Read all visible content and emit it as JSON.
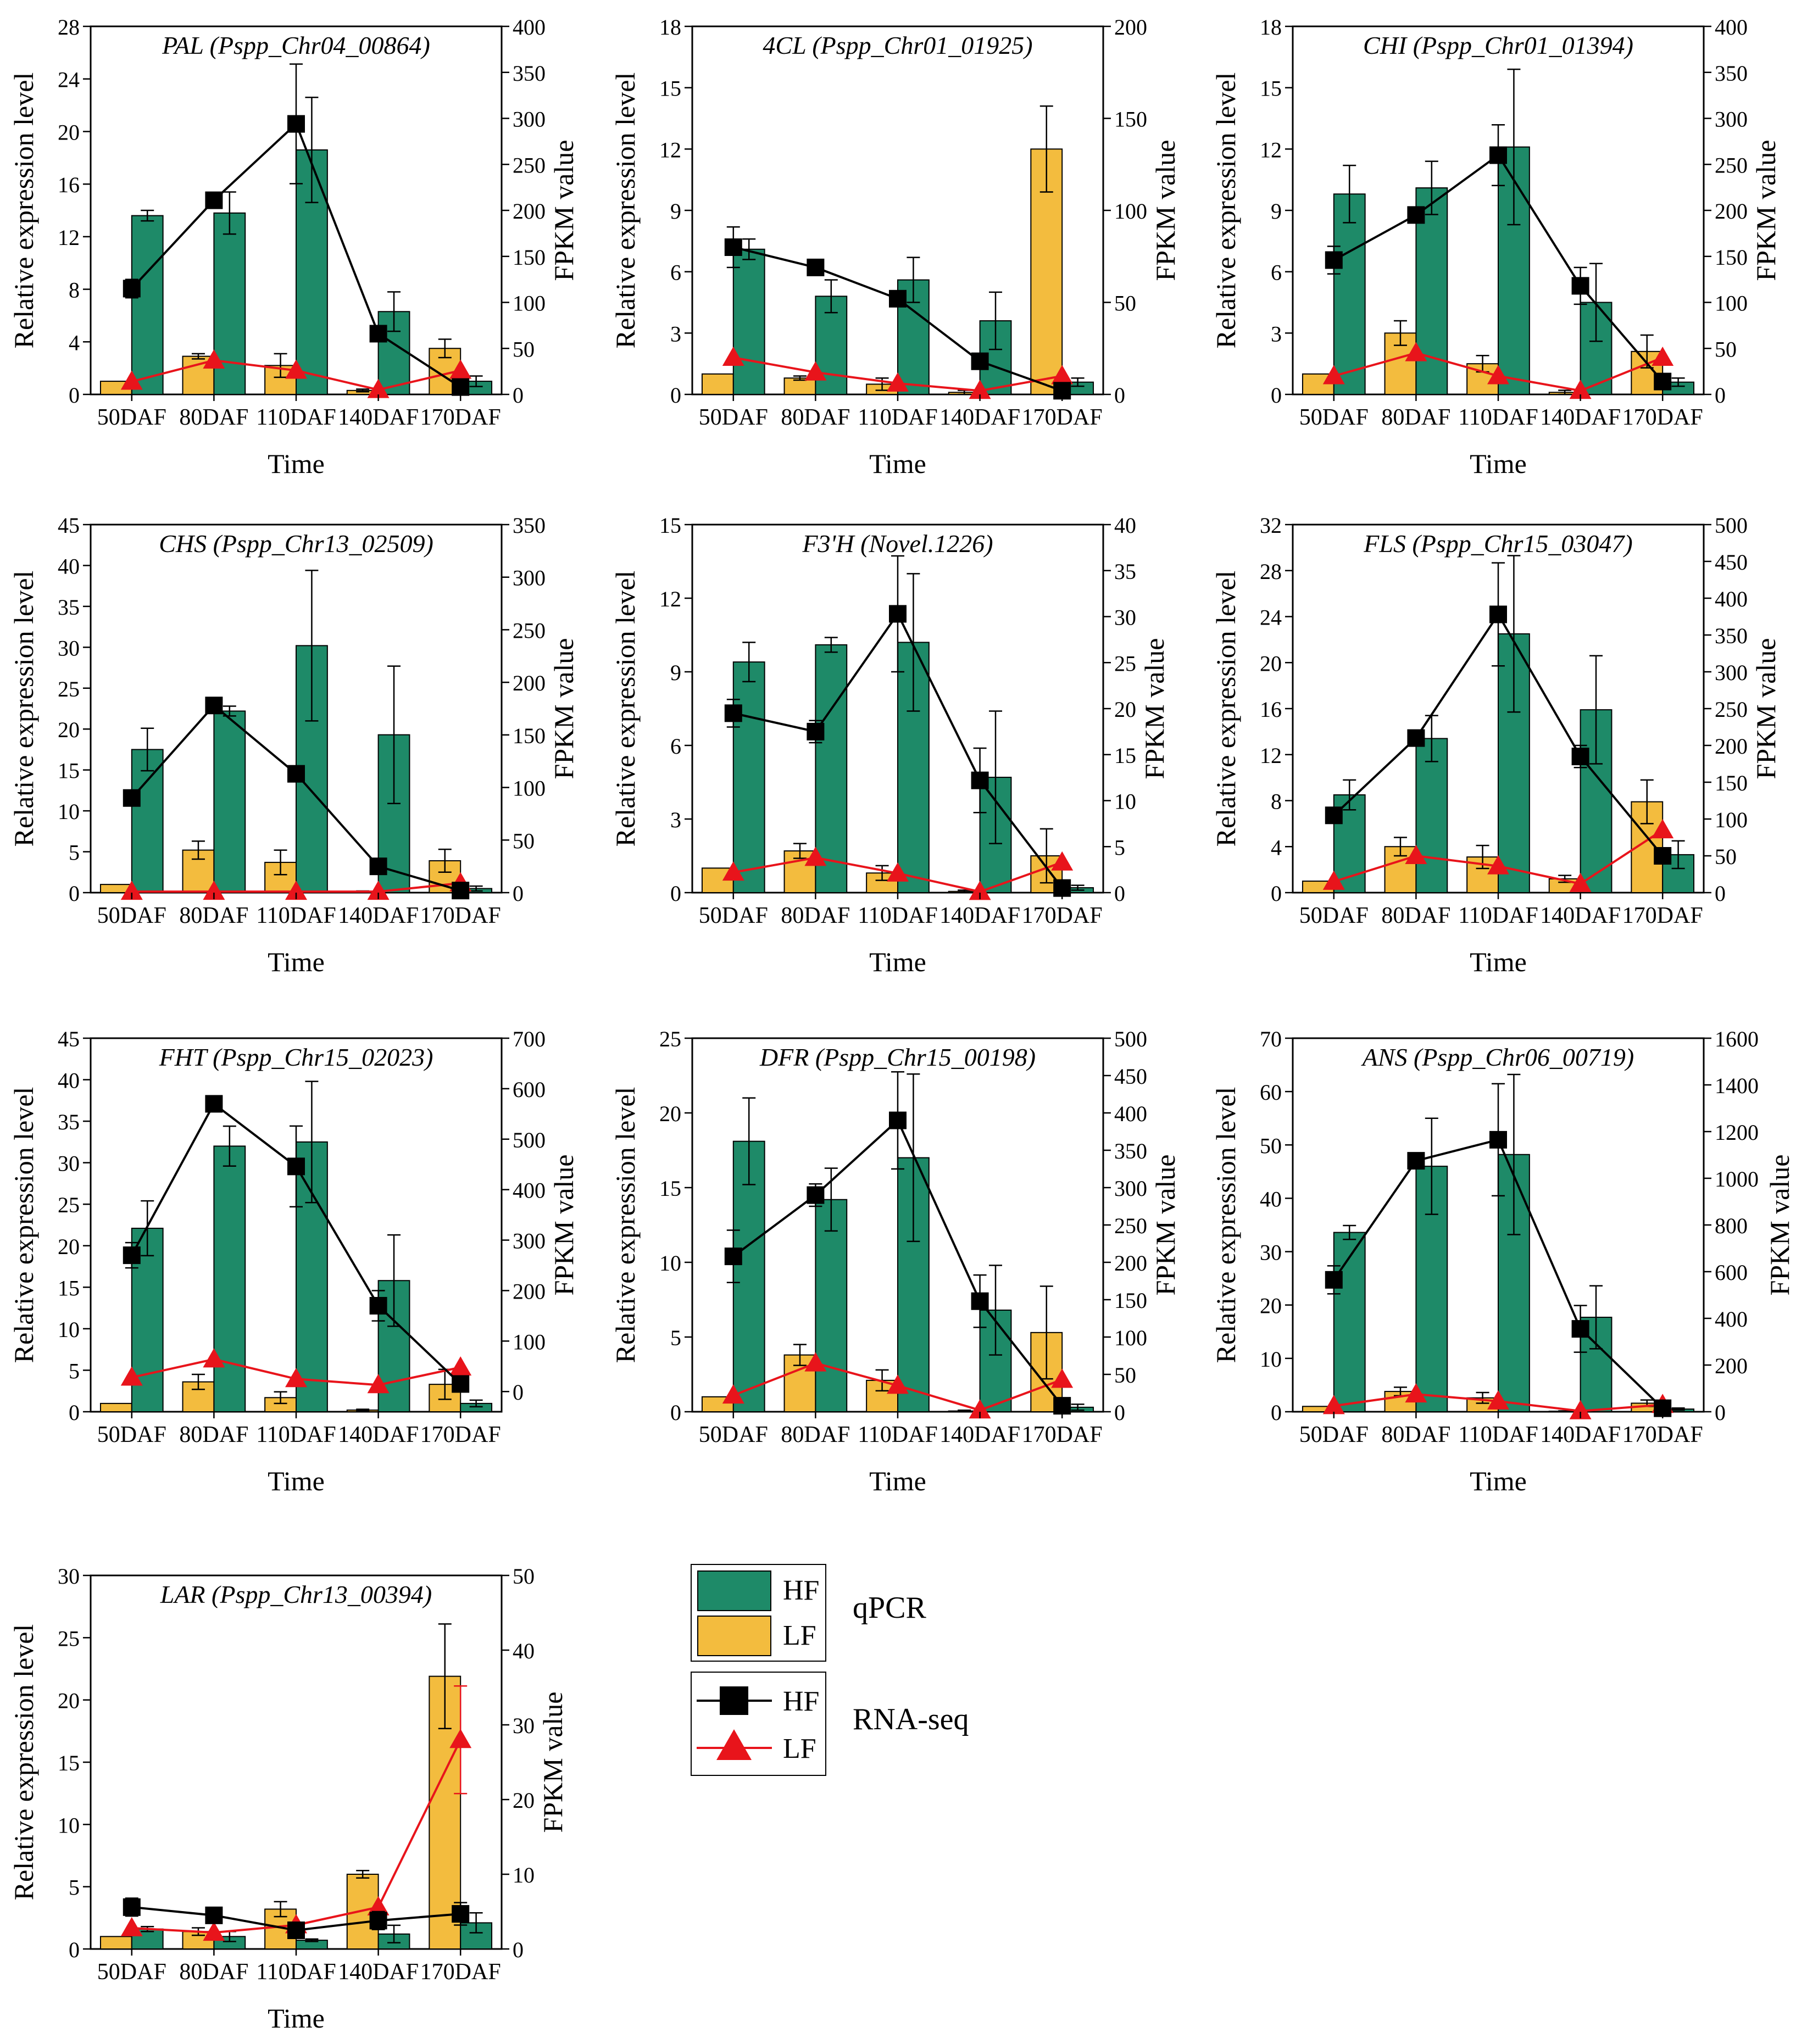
{
  "colors": {
    "hf_bar": "#1e8a68",
    "lf_bar": "#f3bc3e",
    "hf_line": "#000000",
    "lf_line": "#e8141b"
  },
  "legend": {
    "qpcr_label": "qPCR",
    "rnaseq_label": "RNA-seq",
    "hf": "HF",
    "lf": "LF"
  },
  "chart_data": [
    {
      "type": "bar+line",
      "title": "PAL  (Pspp_Chr04_00864)",
      "categories": [
        "50DAF",
        "80DAF",
        "110DAF",
        "140DAF",
        "170DAF"
      ],
      "xlabel": "Time",
      "ylabel": "Relative expression level",
      "y2label": "FPKM value",
      "ylim": [
        0,
        28
      ],
      "yticks": [
        0,
        4,
        8,
        12,
        16,
        20,
        24,
        28
      ],
      "y2lim": [
        0,
        400
      ],
      "y2ticks": [
        0,
        50,
        100,
        150,
        200,
        250,
        300,
        350,
        400
      ],
      "qpcr_lf": [
        1,
        2.9,
        2.2,
        0.3,
        3.5
      ],
      "qpcr_lf_err": [
        0,
        0.2,
        0.9,
        0.1,
        0.7
      ],
      "qpcr_hf": [
        13.6,
        13.8,
        18.6,
        6.3,
        1.0
      ],
      "qpcr_hf_err": [
        0.4,
        1.6,
        4.0,
        1.5,
        0.4
      ],
      "fpkm_hf": [
        115,
        211,
        294,
        66,
        8
      ],
      "fpkm_hf_err": [
        10,
        4,
        65,
        8,
        2
      ],
      "fpkm_lf": [
        14,
        37,
        26,
        5,
        26
      ],
      "fpkm_lf_err": [
        0,
        0,
        0,
        0,
        0
      ]
    },
    {
      "type": "bar+line",
      "title": "4CL (Pspp_Chr01_01925)",
      "categories": [
        "50DAF",
        "80DAF",
        "110DAF",
        "140DAF",
        "170DAF"
      ],
      "xlabel": "Time",
      "ylabel": "Relative expression level",
      "y2label": "FPKM value",
      "ylim": [
        0,
        18
      ],
      "yticks": [
        0,
        3,
        6,
        9,
        12,
        15,
        18
      ],
      "y2lim": [
        0,
        200
      ],
      "y2ticks": [
        0,
        50,
        100,
        150,
        200
      ],
      "qpcr_lf": [
        1,
        0.8,
        0.5,
        0.1,
        12
      ],
      "qpcr_lf_err": [
        0,
        0.1,
        0.3,
        0.1,
        2.1
      ],
      "qpcr_hf": [
        7.1,
        4.8,
        5.6,
        3.6,
        0.6
      ],
      "qpcr_hf_err": [
        0.5,
        0.8,
        1.1,
        1.4,
        0.2
      ],
      "fpkm_hf": [
        80,
        69,
        52,
        18,
        2
      ],
      "fpkm_hf_err": [
        11,
        3,
        3,
        3,
        1
      ],
      "fpkm_lf": [
        20,
        12,
        6,
        2,
        10
      ],
      "fpkm_lf_err": [
        0,
        0,
        0,
        0,
        0
      ]
    },
    {
      "type": "bar+line",
      "title": "CHI (Pspp_Chr01_01394)",
      "categories": [
        "50DAF",
        "80DAF",
        "110DAF",
        "140DAF",
        "170DAF"
      ],
      "xlabel": "Time",
      "ylabel": "Relative expression level",
      "y2label": "FPKM value",
      "ylim": [
        0,
        18
      ],
      "yticks": [
        0,
        3,
        6,
        9,
        12,
        15,
        18
      ],
      "y2lim": [
        0,
        400
      ],
      "y2ticks": [
        0,
        50,
        100,
        150,
        200,
        250,
        300,
        350,
        400
      ],
      "qpcr_lf": [
        1,
        3.0,
        1.5,
        0.1,
        2.1
      ],
      "qpcr_lf_err": [
        0,
        0.6,
        0.4,
        0.1,
        0.8
      ],
      "qpcr_hf": [
        9.8,
        10.1,
        12.1,
        4.5,
        0.6
      ],
      "qpcr_hf_err": [
        1.4,
        1.3,
        3.8,
        1.9,
        0.2
      ],
      "fpkm_hf": [
        146,
        195,
        260,
        118,
        14
      ],
      "fpkm_hf_err": [
        15,
        6,
        33,
        20,
        3
      ],
      "fpkm_lf": [
        20,
        45,
        20,
        4,
        40
      ],
      "fpkm_lf_err": [
        0,
        0,
        0,
        0,
        0
      ]
    },
    {
      "type": "bar+line",
      "title": "CHS (Pspp_Chr13_02509)",
      "categories": [
        "50DAF",
        "80DAF",
        "110DAF",
        "140DAF",
        "170DAF"
      ],
      "xlabel": "Time",
      "ylabel": "Relative expression level",
      "y2label": "FPKM value",
      "ylim": [
        0,
        45
      ],
      "yticks": [
        0,
        5,
        10,
        15,
        20,
        25,
        30,
        35,
        40,
        45
      ],
      "y2lim": [
        0,
        350
      ],
      "y2ticks": [
        0,
        50,
        100,
        150,
        200,
        250,
        300,
        350
      ],
      "qpcr_lf": [
        1,
        5.2,
        3.7,
        0.1,
        3.9
      ],
      "qpcr_lf_err": [
        0,
        1.1,
        1.5,
        0.1,
        1.4
      ],
      "qpcr_hf": [
        17.5,
        22.2,
        30.2,
        19.3,
        0.5
      ],
      "qpcr_hf_err": [
        2.6,
        0.6,
        9.2,
        8.4,
        0.3
      ],
      "fpkm_hf": [
        90,
        178,
        113,
        25,
        2
      ],
      "fpkm_hf_err": [
        5,
        2,
        3,
        3,
        1
      ],
      "fpkm_lf": [
        1,
        1,
        1,
        1,
        9
      ],
      "fpkm_lf_err": [
        0,
        0,
        0,
        0,
        0
      ]
    },
    {
      "type": "bar+line",
      "title": "F3'H (Novel.1226)",
      "categories": [
        "50DAF",
        "80DAF",
        "110DAF",
        "140DAF",
        "170DAF"
      ],
      "xlabel": "Time",
      "ylabel": "Relative expression level",
      "y2label": "FPKM value",
      "ylim": [
        0,
        15
      ],
      "yticks": [
        0,
        3,
        6,
        9,
        12,
        15
      ],
      "y2lim": [
        0,
        40
      ],
      "y2ticks": [
        0,
        5,
        10,
        15,
        20,
        25,
        30,
        35,
        40
      ],
      "qpcr_lf": [
        1,
        1.7,
        0.8,
        0.05,
        1.5
      ],
      "qpcr_lf_err": [
        0,
        0.3,
        0.3,
        0.05,
        1.1
      ],
      "qpcr_hf": [
        9.4,
        10.1,
        10.2,
        4.7,
        0.2
      ],
      "qpcr_hf_err": [
        0.8,
        0.3,
        2.8,
        2.7,
        0.1
      ],
      "fpkm_hf": [
        19.5,
        17.5,
        30.3,
        12.2,
        0.5
      ],
      "fpkm_hf_err": [
        1.5,
        1.2,
        6.3,
        3.5,
        0.3
      ],
      "fpkm_lf": [
        2.2,
        3.8,
        2.1,
        0.1,
        3.3
      ],
      "fpkm_lf_err": [
        0,
        0,
        0,
        0,
        0
      ]
    },
    {
      "type": "bar+line",
      "title": "FLS (Pspp_Chr15_03047)",
      "categories": [
        "50DAF",
        "80DAF",
        "110DAF",
        "140DAF",
        "170DAF"
      ],
      "xlabel": "Time",
      "ylabel": "Relative expression level",
      "y2label": "FPKM value",
      "ylim": [
        0,
        32
      ],
      "yticks": [
        0,
        4,
        8,
        12,
        16,
        20,
        24,
        28,
        32
      ],
      "y2lim": [
        0,
        500
      ],
      "y2ticks": [
        0,
        50,
        100,
        150,
        200,
        250,
        300,
        350,
        400,
        450,
        500
      ],
      "qpcr_lf": [
        1,
        4.0,
        3.1,
        1.2,
        7.9
      ],
      "qpcr_lf_err": [
        0,
        0.8,
        1.0,
        0.3,
        1.9
      ],
      "qpcr_hf": [
        8.5,
        13.4,
        22.5,
        15.9,
        3.3
      ],
      "qpcr_hf_err": [
        1.3,
        2.0,
        6.8,
        4.7,
        1.2
      ],
      "fpkm_hf": [
        105,
        210,
        378,
        185,
        50
      ],
      "fpkm_hf_err": [
        10,
        5,
        70,
        15,
        5
      ],
      "fpkm_lf": [
        15,
        50,
        36,
        12,
        85
      ],
      "fpkm_lf_err": [
        0,
        0,
        0,
        0,
        0
      ]
    },
    {
      "type": "bar+line",
      "title": "FHT (Pspp_Chr15_02023)",
      "categories": [
        "50DAF",
        "80DAF",
        "110DAF",
        "140DAF",
        "170DAF"
      ],
      "xlabel": "Time",
      "ylabel": "Relative expression level",
      "y2label": "FPKM value",
      "ylim": [
        0,
        45
      ],
      "yticks": [
        0,
        5,
        10,
        15,
        20,
        25,
        30,
        35,
        40,
        45
      ],
      "y2lim": [
        -40,
        700
      ],
      "y2ticks": [
        0,
        100,
        200,
        300,
        400,
        500,
        600,
        700
      ],
      "qpcr_lf": [
        1,
        3.6,
        1.7,
        0.2,
        3.3
      ],
      "qpcr_lf_err": [
        0,
        0.9,
        0.7,
        0.1,
        1.8
      ],
      "qpcr_hf": [
        22.1,
        32.0,
        32.5,
        15.8,
        1.0
      ],
      "qpcr_hf_err": [
        3.3,
        2.4,
        7.3,
        5.5,
        0.4
      ],
      "fpkm_hf": [
        270,
        570,
        446,
        170,
        15
      ],
      "fpkm_hf_err": [
        25,
        15,
        80,
        30,
        5
      ],
      "fpkm_lf": [
        28,
        64,
        25,
        13,
        48
      ],
      "fpkm_lf_err": [
        0,
        0,
        0,
        0,
        0
      ]
    },
    {
      "type": "bar+line",
      "title": "DFR (Pspp_Chr15_00198)",
      "categories": [
        "50DAF",
        "80DAF",
        "110DAF",
        "140DAF",
        "170DAF"
      ],
      "xlabel": "Time",
      "ylabel": "Relative expression level",
      "y2label": "FPKM value",
      "ylim": [
        0,
        25
      ],
      "yticks": [
        0,
        5,
        10,
        15,
        20,
        25
      ],
      "y2lim": [
        0,
        500
      ],
      "y2ticks": [
        0,
        50,
        100,
        150,
        200,
        250,
        300,
        350,
        400,
        450,
        500
      ],
      "qpcr_lf": [
        1,
        3.8,
        2.1,
        0.05,
        5.3
      ],
      "qpcr_lf_err": [
        0,
        0.7,
        0.7,
        0.05,
        3.1
      ],
      "qpcr_hf": [
        18.1,
        14.2,
        17.0,
        6.8,
        0.3
      ],
      "qpcr_hf_err": [
        2.9,
        2.1,
        5.6,
        3.0,
        0.2
      ],
      "fpkm_hf": [
        208,
        290,
        390,
        148,
        8
      ],
      "fpkm_hf_err": [
        35,
        15,
        65,
        35,
        3
      ],
      "fpkm_lf": [
        22,
        65,
        35,
        2,
        43
      ],
      "fpkm_lf_err": [
        0,
        0,
        0,
        0,
        0
      ]
    },
    {
      "type": "bar+line",
      "title": "ANS (Pspp_Chr06_00719)",
      "categories": [
        "50DAF",
        "80DAF",
        "110DAF",
        "140DAF",
        "170DAF"
      ],
      "xlabel": "Time",
      "ylabel": "Relative expression level",
      "y2label": "FPKM value",
      "ylim": [
        0,
        70
      ],
      "yticks": [
        0,
        10,
        20,
        30,
        40,
        50,
        60,
        70
      ],
      "y2lim": [
        0,
        1600
      ],
      "y2ticks": [
        0,
        200,
        400,
        600,
        800,
        1000,
        1200,
        1400,
        1600
      ],
      "qpcr_lf": [
        1,
        3.8,
        2.6,
        0.1,
        1.6
      ],
      "qpcr_lf_err": [
        0,
        0.8,
        1.0,
        0.05,
        0.6
      ],
      "qpcr_hf": [
        33.6,
        46.0,
        48.2,
        17.7,
        0.5
      ],
      "qpcr_hf_err": [
        1.3,
        9.0,
        15.0,
        5.9,
        0.2
      ],
      "fpkm_hf": [
        565,
        1075,
        1165,
        355,
        15
      ],
      "fpkm_hf_err": [
        60,
        25,
        240,
        100,
        5
      ],
      "fpkm_lf": [
        25,
        75,
        45,
        3,
        30
      ],
      "fpkm_lf_err": [
        0,
        0,
        0,
        0,
        0
      ]
    },
    {
      "type": "bar+line",
      "title": "LAR (Pspp_Chr13_00394)",
      "categories": [
        "50DAF",
        "80DAF",
        "110DAF",
        "140DAF",
        "170DAF"
      ],
      "xlabel": "Time",
      "ylabel": "Relative expression level",
      "y2label": "FPKM value",
      "ylim": [
        0,
        30
      ],
      "yticks": [
        0,
        5,
        10,
        15,
        20,
        25,
        30
      ],
      "y2lim": [
        0,
        50
      ],
      "y2ticks": [
        0,
        10,
        20,
        30,
        40,
        50
      ],
      "qpcr_lf": [
        1,
        1.4,
        3.2,
        6.0,
        21.9
      ],
      "qpcr_lf_err": [
        0,
        0.3,
        0.6,
        0.3,
        4.2
      ],
      "qpcr_hf": [
        1.6,
        1.0,
        0.7,
        1.2,
        2.1
      ],
      "qpcr_hf_err": [
        0.2,
        0.4,
        0.1,
        0.7,
        0.8
      ],
      "fpkm_hf": [
        5.6,
        4.5,
        2.5,
        3.8,
        4.7
      ],
      "fpkm_hf_err": [
        1.2,
        0.3,
        0.4,
        1.2,
        1.5
      ],
      "fpkm_lf": [
        2.8,
        2.2,
        3.2,
        5.6,
        28.0
      ],
      "fpkm_lf_err": [
        0,
        0,
        0,
        0,
        7.2
      ]
    }
  ]
}
